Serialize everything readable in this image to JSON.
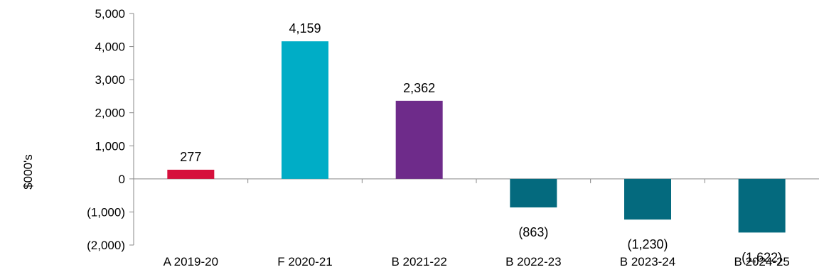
{
  "chart_data": {
    "type": "bar",
    "title": "",
    "xlabel": "",
    "ylabel": "$000's",
    "categories": [
      "A 2019-20",
      "F 2020-21",
      "B 2021-22",
      "B 2022-23",
      "B 2023-24",
      "B 2024-25"
    ],
    "values": [
      277,
      4159,
      2362,
      -863,
      -1230,
      -1622
    ],
    "data_labels": [
      "277",
      "4,159",
      "2,362",
      "(863)",
      "(1,230)",
      "(1,622)"
    ],
    "bar_colors": [
      "#d6103c",
      "#00adc6",
      "#6e2b8a",
      "#046a7e",
      "#046a7e",
      "#046a7e"
    ],
    "ylim": [
      -2000,
      5000
    ],
    "yticks": [
      5000,
      4000,
      3000,
      2000,
      1000,
      0,
      -1000,
      -2000
    ],
    "ytick_labels": [
      "5,000",
      "4,000",
      "3,000",
      "2,000",
      "1,000",
      "0",
      "(1,000)",
      "(2,000)"
    ],
    "grid": false,
    "legend": "none"
  }
}
